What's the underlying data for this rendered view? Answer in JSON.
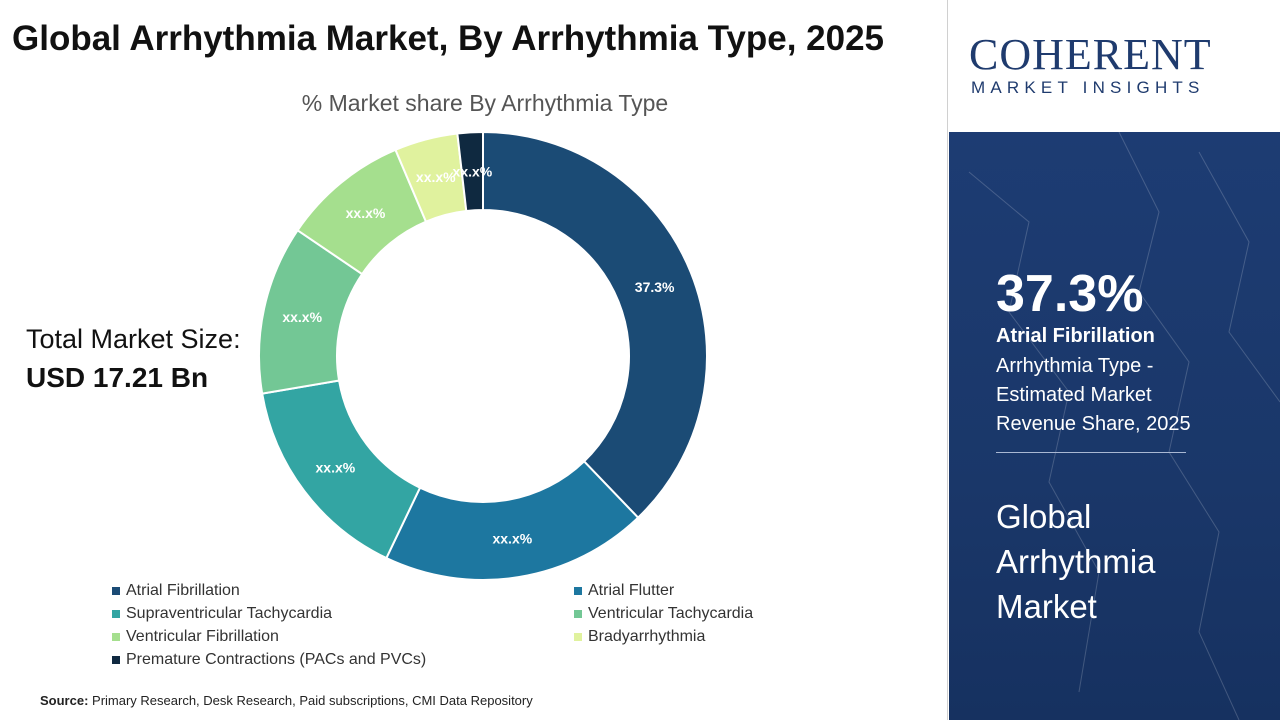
{
  "header": {
    "title": "Global Arrhythmia Market, By Arrhythmia Type, 2025"
  },
  "market_size": {
    "label": "Total Market Size:",
    "value": "USD 17.21 Bn"
  },
  "source": {
    "label": "Source:",
    "text": "Primary Research, Desk Research, Paid subscriptions, CMI Data Repository"
  },
  "logo": {
    "main": "COHERENT",
    "sub": "MARKET INSIGHTS"
  },
  "side_panel": {
    "highlight_value": "37.3%",
    "highlight_segment": "Atrial Fibrillation",
    "description": "Arrhythmia Type - Estimated Market Revenue Share, 2025",
    "market_name": "Global Arrhythmia Market"
  },
  "chart_data": {
    "type": "pie",
    "subtype": "donut",
    "title": "% Market share By Arrhythmia Type",
    "unit": "%",
    "categories": [
      "Atrial Fibrillation",
      "Atrial Flutter",
      "Supraventricular Tachycardia",
      "Ventricular Tachycardia",
      "Ventricular Fibrillation",
      "Bradyarrhythmia",
      "Premature Contractions (PACs and PVCs)"
    ],
    "values": [
      37.3,
      19.0,
      15.0,
      12.0,
      9.0,
      4.5,
      1.8
    ],
    "labels": [
      "37.3%",
      "xx.x%",
      "xx.x%",
      "xx.x%",
      "xx.x%",
      "xx.x%",
      "xx.x%"
    ],
    "colors": [
      "#1b4b75",
      "#1d77a0",
      "#33a5a3",
      "#73c795",
      "#a5df8e",
      "#e0f29e",
      "#0f2940"
    ],
    "legend_placement": "bottom"
  }
}
